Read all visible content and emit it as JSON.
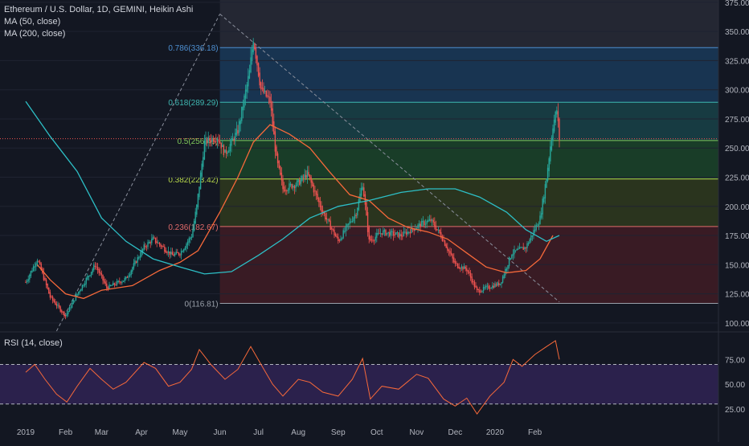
{
  "header": {
    "symbol_line": "Ethereum / U.S. Dollar, 1D, GEMINI, Heikin Ashi",
    "ma50_label": "MA (50, close)",
    "ma200_label": "MA (200, close)",
    "rsi_label": "RSI (14, close)"
  },
  "colors": {
    "background": "#131722",
    "up_candle": "#26a69a",
    "down_candle": "#ef5350",
    "ma50": "#f7693a",
    "ma200": "#2dbfc6",
    "rsi_line": "#f7693a",
    "rsi_band": "#4a2f80",
    "fib_0786_band": "#1e4d78",
    "fib_0618_band": "#1c5a5c",
    "fib_05_band": "#1f5c2e",
    "fib_0382_band": "#3e4d1c",
    "fib_0236_band": "#5a1f26",
    "last_price_line": "#ef5350"
  },
  "chart_data": [
    {
      "type": "candlestick",
      "title": "Ethereum / U.S. Dollar, 1D, GEMINI, Heikin Ashi",
      "y_scale": "linear",
      "ylim": [
        93,
        377
      ],
      "y_ticks": [
        "375.00",
        "350.00",
        "325.00",
        "300.00",
        "275.00",
        "250.00",
        "225.00",
        "200.00",
        "175.00",
        "150.00",
        "125.00",
        "100.00"
      ],
      "x_ticks": [
        "2019",
        "Feb",
        "Mar",
        "Apr",
        "May",
        "Jun",
        "Jul",
        "Aug",
        "Sep",
        "Oct",
        "Nov",
        "Dec",
        "2020",
        "Feb"
      ],
      "price_path": [
        [
          "2019-01-01",
          135
        ],
        [
          "2019-01-10",
          155
        ],
        [
          "2019-01-20",
          122
        ],
        [
          "2019-02-01",
          106
        ],
        [
          "2019-02-10",
          125
        ],
        [
          "2019-02-24",
          150
        ],
        [
          "2019-03-05",
          130
        ],
        [
          "2019-03-20",
          138
        ],
        [
          "2019-04-03",
          165
        ],
        [
          "2019-04-10",
          172
        ],
        [
          "2019-04-25",
          158
        ],
        [
          "2019-05-01",
          160
        ],
        [
          "2019-05-10",
          175
        ],
        [
          "2019-05-14",
          200
        ],
        [
          "2019-05-20",
          255
        ],
        [
          "2019-05-30",
          260
        ],
        [
          "2019-06-05",
          245
        ],
        [
          "2019-06-15",
          265
        ],
        [
          "2019-06-24",
          315
        ],
        [
          "2019-06-27",
          345
        ],
        [
          "2019-07-03",
          300
        ],
        [
          "2019-07-10",
          290
        ],
        [
          "2019-07-15",
          240
        ],
        [
          "2019-07-20",
          215
        ],
        [
          "2019-08-01",
          220
        ],
        [
          "2019-08-08",
          228
        ],
        [
          "2019-08-20",
          195
        ],
        [
          "2019-09-01",
          170
        ],
        [
          "2019-09-15",
          195
        ],
        [
          "2019-09-20",
          220
        ],
        [
          "2019-09-25",
          170
        ],
        [
          "2019-10-05",
          178
        ],
        [
          "2019-10-20",
          175
        ],
        [
          "2019-11-05",
          185
        ],
        [
          "2019-11-12",
          188
        ],
        [
          "2019-11-20",
          175
        ],
        [
          "2019-12-01",
          150
        ],
        [
          "2019-12-10",
          146
        ],
        [
          "2019-12-18",
          127
        ],
        [
          "2019-12-25",
          130
        ],
        [
          "2020-01-05",
          134
        ],
        [
          "2020-01-14",
          160
        ],
        [
          "2020-01-25",
          165
        ],
        [
          "2020-02-05",
          190
        ],
        [
          "2020-02-10",
          225
        ],
        [
          "2020-02-15",
          270
        ],
        [
          "2020-02-18",
          283
        ],
        [
          "2020-02-20",
          258
        ]
      ],
      "series": [
        {
          "name": "MA (50, close)",
          "values": [
            [
              "2019-01-10",
              150
            ],
            [
              "2019-01-20",
              137
            ],
            [
              "2019-02-01",
              125
            ],
            [
              "2019-02-15",
              121
            ],
            [
              "2019-03-01",
              128
            ],
            [
              "2019-03-25",
              132
            ],
            [
              "2019-04-15",
              145
            ],
            [
              "2019-05-01",
              152
            ],
            [
              "2019-05-15",
              162
            ],
            [
              "2019-06-01",
              195
            ],
            [
              "2019-06-15",
              225
            ],
            [
              "2019-06-27",
              255
            ],
            [
              "2019-07-10",
              270
            ],
            [
              "2019-07-25",
              262
            ],
            [
              "2019-08-10",
              250
            ],
            [
              "2019-08-25",
              230
            ],
            [
              "2019-09-10",
              210
            ],
            [
              "2019-09-25",
              205
            ],
            [
              "2019-10-10",
              190
            ],
            [
              "2019-10-25",
              182
            ],
            [
              "2019-11-10",
              178
            ],
            [
              "2019-11-25",
              172
            ],
            [
              "2019-12-10",
              160
            ],
            [
              "2019-12-25",
              148
            ],
            [
              "2020-01-10",
              143
            ],
            [
              "2020-01-25",
              145
            ],
            [
              "2020-02-05",
              155
            ],
            [
              "2020-02-15",
              175
            ]
          ]
        },
        {
          "name": "MA (200, close)",
          "values": [
            [
              "2019-01-01",
              290
            ],
            [
              "2019-01-20",
              260
            ],
            [
              "2019-02-10",
              230
            ],
            [
              "2019-03-01",
              190
            ],
            [
              "2019-03-20",
              170
            ],
            [
              "2019-04-10",
              155
            ],
            [
              "2019-05-01",
              148
            ],
            [
              "2019-05-20",
              142
            ],
            [
              "2019-06-10",
              144
            ],
            [
              "2019-07-01",
              158
            ],
            [
              "2019-07-20",
              172
            ],
            [
              "2019-08-10",
              190
            ],
            [
              "2019-09-01",
              200
            ],
            [
              "2019-09-25",
              205
            ],
            [
              "2019-10-20",
              212
            ],
            [
              "2019-11-10",
              215
            ],
            [
              "2019-12-01",
              215
            ],
            [
              "2019-12-20",
              208
            ],
            [
              "2020-01-10",
              195
            ],
            [
              "2020-01-25",
              180
            ],
            [
              "2020-02-10",
              170
            ],
            [
              "2020-02-20",
              175
            ]
          ]
        }
      ],
      "fib_levels": [
        {
          "label": "0.786(336.18)",
          "value": 336.18
        },
        {
          "label": "0.618(289.29)",
          "value": 289.29
        },
        {
          "label": "0.5(256.46)",
          "value": 256.46
        },
        {
          "label": "0.382(223.42)",
          "value": 223.42
        },
        {
          "label": "0.236(182.67)",
          "value": 182.67
        },
        {
          "label": "0(116.81)",
          "value": 116.81
        }
      ],
      "fib_start_date": "2019-06-01",
      "last_price": 258,
      "trendlines": [
        {
          "from": [
            "2019-01-25",
            93
          ],
          "to": [
            "2019-06-01",
            365
          ]
        },
        {
          "from": [
            "2019-06-01",
            365
          ],
          "to": [
            "2020-02-20",
            118
          ]
        }
      ]
    },
    {
      "type": "line",
      "title": "RSI (14, close)",
      "ylim": [
        12,
        102
      ],
      "y_ticks": [
        "75.00",
        "50.00",
        "25.00"
      ],
      "bands": {
        "upper": 70,
        "lower": 30
      },
      "values": [
        [
          "2019-01-01",
          62
        ],
        [
          "2019-01-08",
          70
        ],
        [
          "2019-01-16",
          55
        ],
        [
          "2019-01-25",
          40
        ],
        [
          "2019-02-02",
          32
        ],
        [
          "2019-02-10",
          48
        ],
        [
          "2019-02-20",
          66
        ],
        [
          "2019-03-01",
          55
        ],
        [
          "2019-03-10",
          45
        ],
        [
          "2019-03-20",
          52
        ],
        [
          "2019-04-03",
          72
        ],
        [
          "2019-04-12",
          66
        ],
        [
          "2019-04-22",
          48
        ],
        [
          "2019-05-01",
          52
        ],
        [
          "2019-05-10",
          65
        ],
        [
          "2019-05-16",
          85
        ],
        [
          "2019-05-25",
          70
        ],
        [
          "2019-06-05",
          55
        ],
        [
          "2019-06-15",
          65
        ],
        [
          "2019-06-25",
          88
        ],
        [
          "2019-07-03",
          70
        ],
        [
          "2019-07-12",
          50
        ],
        [
          "2019-07-20",
          38
        ],
        [
          "2019-08-01",
          55
        ],
        [
          "2019-08-10",
          52
        ],
        [
          "2019-08-20",
          42
        ],
        [
          "2019-09-01",
          38
        ],
        [
          "2019-09-12",
          55
        ],
        [
          "2019-09-20",
          76
        ],
        [
          "2019-09-26",
          35
        ],
        [
          "2019-10-05",
          48
        ],
        [
          "2019-10-18",
          45
        ],
        [
          "2019-11-01",
          60
        ],
        [
          "2019-11-10",
          56
        ],
        [
          "2019-11-22",
          35
        ],
        [
          "2019-12-01",
          28
        ],
        [
          "2019-12-10",
          36
        ],
        [
          "2019-12-18",
          20
        ],
        [
          "2019-12-28",
          38
        ],
        [
          "2020-01-08",
          52
        ],
        [
          "2020-01-15",
          75
        ],
        [
          "2020-01-22",
          68
        ],
        [
          "2020-02-01",
          80
        ],
        [
          "2020-02-10",
          88
        ],
        [
          "2020-02-17",
          94
        ],
        [
          "2020-02-20",
          75
        ]
      ]
    }
  ]
}
